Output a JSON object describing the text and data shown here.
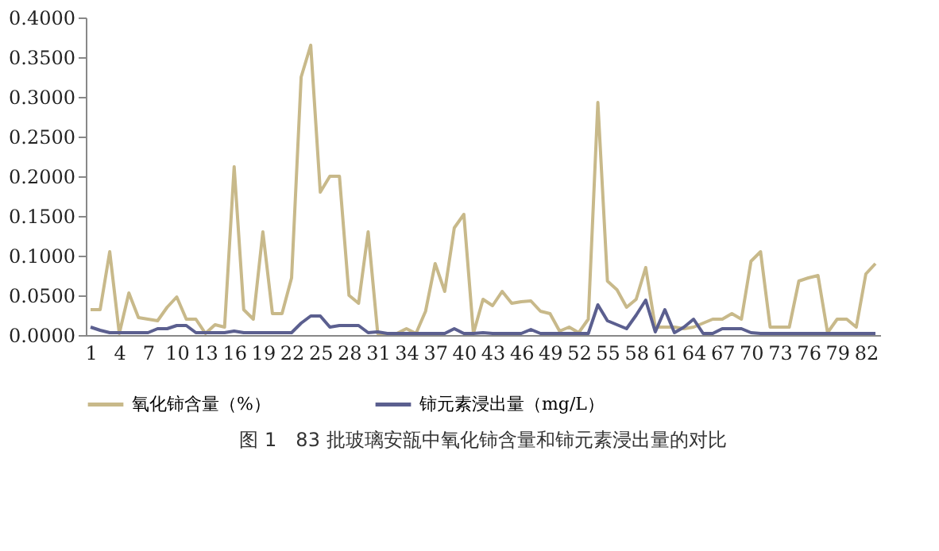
{
  "chart_data": {
    "type": "line",
    "title": "图 1　83 批玻璃安瓿中氧化铈含量和铈元素浸出量的对比",
    "categories": [
      "1",
      null,
      null,
      "4",
      null,
      null,
      "7",
      null,
      null,
      "10",
      null,
      null,
      "13",
      null,
      null,
      "16",
      null,
      null,
      "19",
      null,
      null,
      "22",
      null,
      null,
      "25",
      null,
      null,
      "28",
      null,
      null,
      "31",
      null,
      null,
      "34",
      null,
      null,
      "37",
      null,
      null,
      "40",
      null,
      null,
      "43",
      null,
      null,
      "46",
      null,
      null,
      "49",
      null,
      null,
      "52",
      null,
      null,
      "55",
      null,
      null,
      "58",
      null,
      null,
      "61",
      null,
      null,
      "64",
      null,
      null,
      "67",
      null,
      null,
      "70",
      null,
      null,
      "73",
      null,
      null,
      "76",
      null,
      null,
      "79",
      null,
      null,
      "82",
      null
    ],
    "series": [
      {
        "name": "氧化铈含量（%）",
        "color": "#c8b98a",
        "values": [
          0.032,
          0.032,
          0.105,
          0.002,
          0.053,
          0.022,
          0.02,
          0.018,
          0.035,
          0.048,
          0.02,
          0.02,
          0.002,
          0.013,
          0.01,
          0.212,
          0.032,
          0.02,
          0.13,
          0.027,
          0.027,
          0.072,
          0.325,
          0.365,
          0.18,
          0.2,
          0.2,
          0.05,
          0.04,
          0.13,
          0.002,
          0.002,
          0.002,
          0.008,
          0.002,
          0.03,
          0.09,
          0.055,
          0.135,
          0.152,
          0.002,
          0.045,
          0.037,
          0.055,
          0.04,
          0.042,
          0.043,
          0.03,
          0.027,
          0.005,
          0.01,
          0.003,
          0.02,
          0.293,
          0.068,
          0.057,
          0.035,
          0.045,
          0.085,
          0.01,
          0.01,
          0.01,
          0.008,
          0.01,
          0.015,
          0.02,
          0.02,
          0.027,
          0.02,
          0.093,
          0.105,
          0.01,
          0.01,
          0.01,
          0.068,
          0.072,
          0.075,
          0.003,
          0.02,
          0.02,
          0.01,
          0.077,
          0.09
        ]
      },
      {
        "name": "铈元素浸出量（mg/L）",
        "color": "#5b5f8f",
        "values": [
          0.01,
          0.006,
          0.003,
          0.003,
          0.003,
          0.003,
          0.003,
          0.008,
          0.008,
          0.012,
          0.012,
          0.003,
          0.003,
          0.003,
          0.003,
          0.005,
          0.003,
          0.003,
          0.003,
          0.003,
          0.003,
          0.003,
          0.015,
          0.024,
          0.024,
          0.01,
          0.012,
          0.012,
          0.012,
          0.003,
          0.004,
          0.002,
          0.002,
          0.002,
          0.002,
          0.002,
          0.002,
          0.002,
          0.008,
          0.002,
          0.002,
          0.003,
          0.002,
          0.002,
          0.002,
          0.002,
          0.007,
          0.002,
          0.002,
          0.002,
          0.002,
          0.002,
          0.002,
          0.038,
          0.018,
          0.013,
          0.008,
          0.025,
          0.044,
          0.004,
          0.032,
          0.003,
          0.01,
          0.02,
          0.002,
          0.002,
          0.008,
          0.008,
          0.008,
          0.003,
          0.002,
          0.002,
          0.002,
          0.002,
          0.002,
          0.002,
          0.002,
          0.002,
          0.002,
          0.002,
          0.002,
          0.002,
          0.002
        ]
      }
    ],
    "ylim": [
      0,
      0.4
    ],
    "yticks": [
      {
        "value": 0,
        "label": "0.0000"
      },
      {
        "value": 0.05,
        "label": "0.0500"
      },
      {
        "value": 0.1,
        "label": "0.1000"
      },
      {
        "value": 0.15,
        "label": "0.1500"
      },
      {
        "value": 0.2,
        "label": "0.2000"
      },
      {
        "value": 0.25,
        "label": "0.2500"
      },
      {
        "value": 0.3,
        "label": "0.3000"
      },
      {
        "value": 0.35,
        "label": "0.3500"
      },
      {
        "value": 0.4,
        "label": "0.4000"
      }
    ],
    "grid": false,
    "legend": "bottom",
    "line_style": "solid",
    "marker": "none"
  }
}
